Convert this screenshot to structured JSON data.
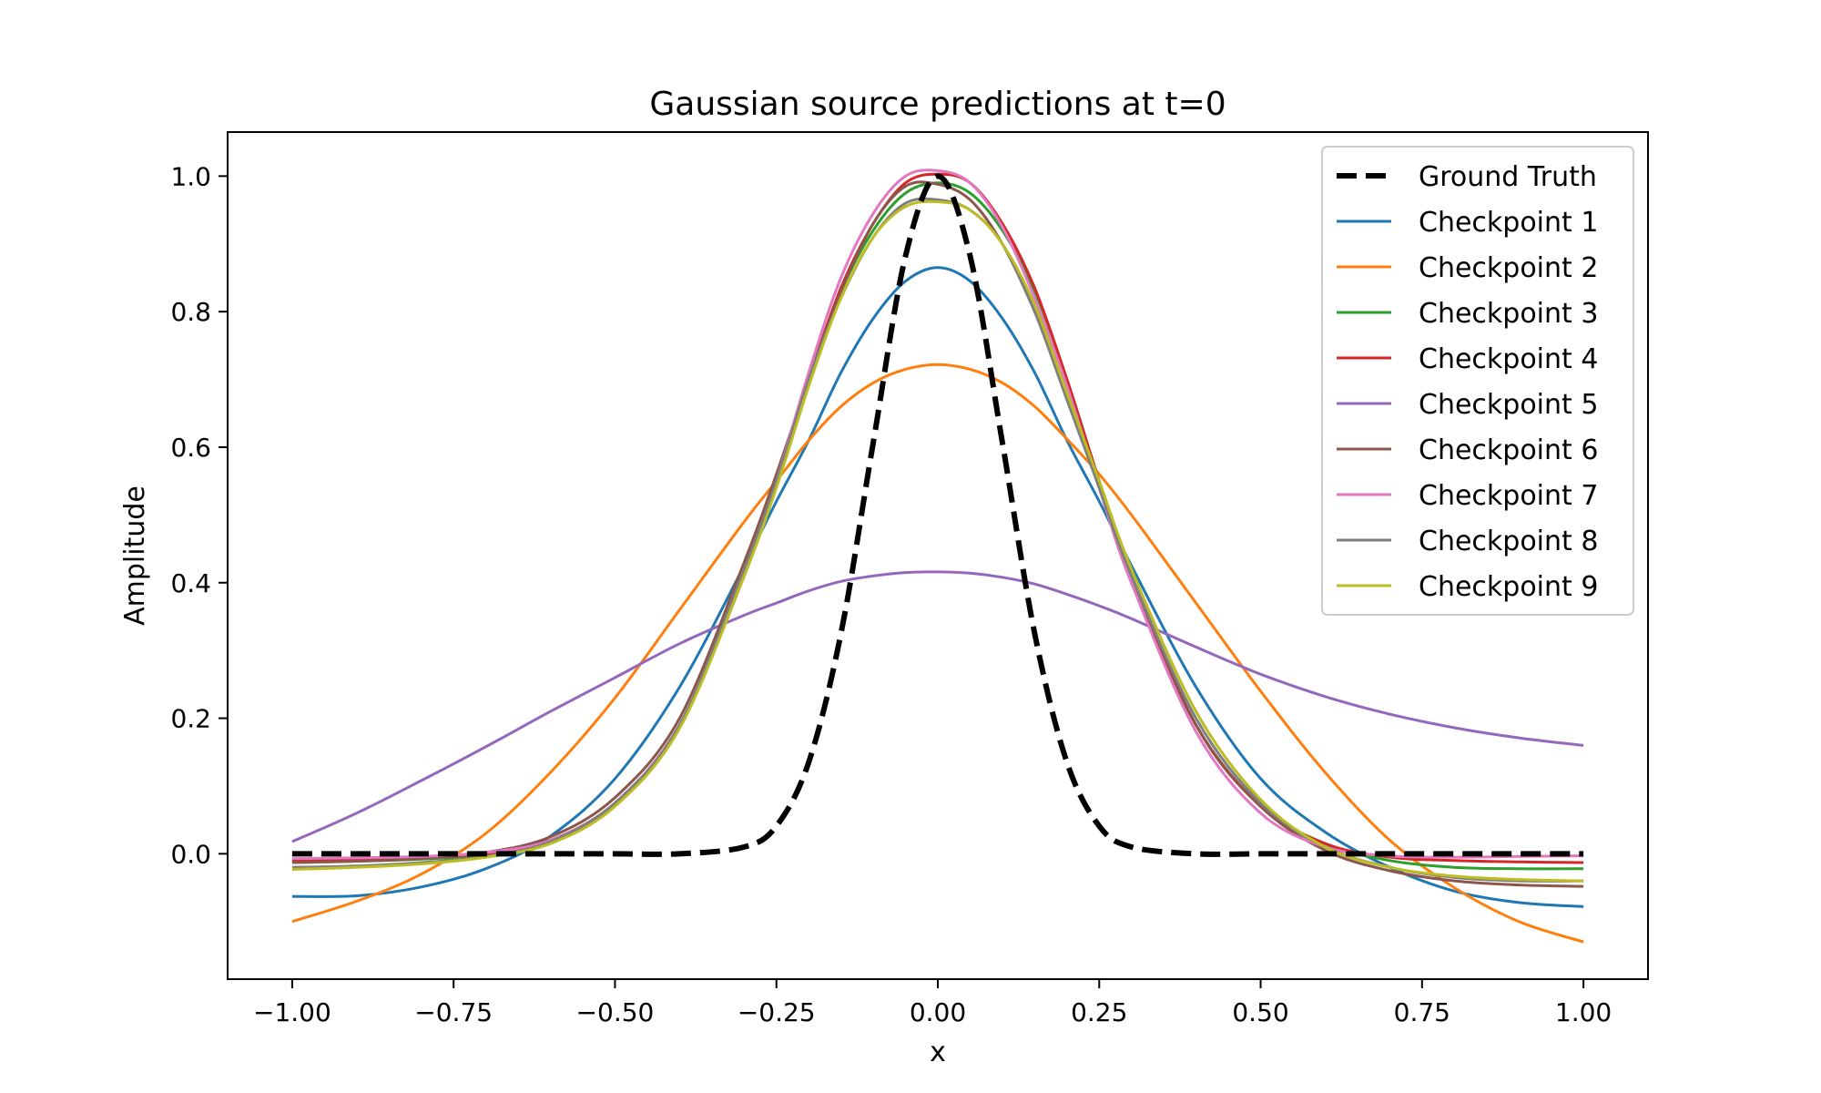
{
  "chart_data": {
    "type": "line",
    "title": "Gaussian source predictions at t=0",
    "xlabel": "x",
    "ylabel": "Amplitude",
    "xlim": [
      -1.1,
      1.1
    ],
    "ylim": [
      -0.185,
      1.065
    ],
    "xticks": [
      -1.0,
      -0.75,
      -0.5,
      -0.25,
      0.0,
      0.25,
      0.5,
      0.75,
      1.0
    ],
    "xtick_labels": [
      "−1.00",
      "−0.75",
      "−0.50",
      "−0.25",
      "0.00",
      "0.25",
      "0.50",
      "0.75",
      "1.00"
    ],
    "yticks": [
      0.0,
      0.2,
      0.4,
      0.6,
      0.8,
      1.0
    ],
    "ytick_labels": [
      "0.0",
      "0.2",
      "0.4",
      "0.6",
      "0.8",
      "1.0"
    ],
    "grid": false,
    "legend_position": "top-right",
    "x": [
      -1.0,
      -0.9,
      -0.8,
      -0.7,
      -0.6,
      -0.5,
      -0.4,
      -0.3,
      -0.25,
      -0.2,
      -0.15,
      -0.1,
      -0.05,
      0.0,
      0.05,
      0.1,
      0.15,
      0.2,
      0.25,
      0.3,
      0.4,
      0.5,
      0.6,
      0.7,
      0.8,
      0.9,
      1.0
    ],
    "series": [
      {
        "name": "Ground Truth",
        "color": "#000000",
        "dashed": true,
        "values": [
          0.0,
          0.0,
          0.0,
          0.0,
          0.0,
          0.0,
          0.0,
          0.01,
          0.041,
          0.135,
          0.325,
          0.607,
          0.882,
          1.0,
          0.882,
          0.607,
          0.325,
          0.135,
          0.041,
          0.01,
          0.0,
          0.0,
          0.0,
          0.0,
          0.0,
          0.0,
          0.0
        ]
      },
      {
        "name": "Checkpoint 1",
        "color": "#1f77b4",
        "values": [
          -0.063,
          -0.062,
          -0.049,
          -0.022,
          0.026,
          0.111,
          0.246,
          0.425,
          0.52,
          0.61,
          0.71,
          0.79,
          0.845,
          0.865,
          0.845,
          0.79,
          0.71,
          0.61,
          0.52,
          0.425,
          0.246,
          0.111,
          0.032,
          -0.02,
          -0.055,
          -0.072,
          -0.078
        ]
      },
      {
        "name": "Checkpoint 2",
        "color": "#ff7f0e",
        "values": [
          -0.1,
          -0.07,
          -0.03,
          0.03,
          0.12,
          0.23,
          0.36,
          0.49,
          0.55,
          0.61,
          0.66,
          0.695,
          0.715,
          0.722,
          0.715,
          0.695,
          0.66,
          0.612,
          0.56,
          0.5,
          0.37,
          0.24,
          0.12,
          0.02,
          -0.05,
          -0.1,
          -0.13
        ]
      },
      {
        "name": "Checkpoint 3",
        "color": "#2ca02c",
        "values": [
          -0.013,
          -0.011,
          -0.008,
          -0.001,
          0.02,
          0.075,
          0.19,
          0.41,
          0.55,
          0.7,
          0.83,
          0.92,
          0.975,
          0.99,
          0.975,
          0.92,
          0.83,
          0.7,
          0.55,
          0.41,
          0.19,
          0.07,
          0.015,
          -0.01,
          -0.02,
          -0.022,
          -0.022
        ]
      },
      {
        "name": "Checkpoint 4",
        "color": "#d62728",
        "values": [
          -0.011,
          -0.009,
          -0.006,
          0.0,
          0.02,
          0.075,
          0.19,
          0.41,
          0.55,
          0.7,
          0.835,
          0.93,
          0.99,
          1.003,
          0.99,
          0.93,
          0.835,
          0.7,
          0.55,
          0.41,
          0.19,
          0.07,
          0.015,
          -0.005,
          -0.01,
          -0.012,
          -0.013
        ]
      },
      {
        "name": "Checkpoint 5",
        "color": "#9467bd",
        "values": [
          0.018,
          0.06,
          0.108,
          0.158,
          0.21,
          0.26,
          0.31,
          0.352,
          0.37,
          0.388,
          0.402,
          0.41,
          0.415,
          0.416,
          0.414,
          0.408,
          0.398,
          0.383,
          0.366,
          0.347,
          0.305,
          0.265,
          0.232,
          0.206,
          0.186,
          0.171,
          0.16
        ]
      },
      {
        "name": "Checkpoint 6",
        "color": "#8c564b",
        "values": [
          -0.013,
          -0.011,
          -0.007,
          0.002,
          0.025,
          0.083,
          0.2,
          0.43,
          0.56,
          0.7,
          0.83,
          0.93,
          0.985,
          0.988,
          0.965,
          0.9,
          0.8,
          0.68,
          0.54,
          0.4,
          0.19,
          0.07,
          0.005,
          -0.025,
          -0.04,
          -0.046,
          -0.048
        ]
      },
      {
        "name": "Checkpoint 7",
        "color": "#e377c2",
        "values": [
          -0.007,
          -0.006,
          -0.004,
          0.002,
          0.02,
          0.075,
          0.19,
          0.41,
          0.55,
          0.71,
          0.85,
          0.945,
          1.0,
          1.008,
          0.99,
          0.925,
          0.82,
          0.69,
          0.54,
          0.4,
          0.18,
          0.06,
          0.01,
          -0.003,
          -0.005,
          -0.004,
          -0.003
        ]
      },
      {
        "name": "Checkpoint 8",
        "color": "#7f7f7f",
        "values": [
          -0.02,
          -0.018,
          -0.013,
          -0.004,
          0.018,
          0.075,
          0.19,
          0.42,
          0.55,
          0.7,
          0.82,
          0.91,
          0.96,
          0.965,
          0.95,
          0.9,
          0.8,
          0.67,
          0.54,
          0.41,
          0.2,
          0.075,
          0.01,
          -0.02,
          -0.035,
          -0.04,
          -0.04
        ]
      },
      {
        "name": "Checkpoint 9",
        "color": "#bcbd22",
        "values": [
          -0.023,
          -0.02,
          -0.015,
          -0.005,
          0.015,
          0.07,
          0.185,
          0.41,
          0.54,
          0.69,
          0.82,
          0.91,
          0.955,
          0.962,
          0.95,
          0.9,
          0.81,
          0.68,
          0.55,
          0.42,
          0.21,
          0.08,
          0.01,
          -0.02,
          -0.033,
          -0.038,
          -0.04
        ]
      }
    ]
  }
}
